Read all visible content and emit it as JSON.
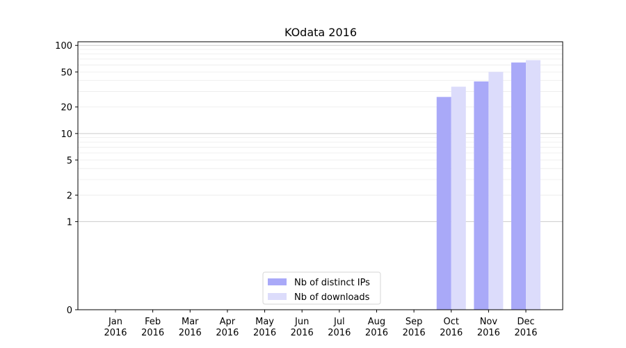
{
  "chart_data": {
    "type": "bar",
    "title": "KOdata 2016",
    "xlabel": "",
    "ylabel": "",
    "y_scale": "symlog",
    "ylim": [
      0,
      110
    ],
    "y_ticks": [
      {
        "value": 0,
        "label": "0"
      },
      {
        "value": 1,
        "label": "1"
      },
      {
        "value": 2,
        "label": "2"
      },
      {
        "value": 5,
        "label": "5"
      },
      {
        "value": 10,
        "label": "10"
      },
      {
        "value": 20,
        "label": "20"
      },
      {
        "value": 50,
        "label": "50"
      },
      {
        "value": 100,
        "label": "100"
      }
    ],
    "categories": [
      {
        "month": "Jan",
        "year": "2016"
      },
      {
        "month": "Feb",
        "year": "2016"
      },
      {
        "month": "Mar",
        "year": "2016"
      },
      {
        "month": "Apr",
        "year": "2016"
      },
      {
        "month": "May",
        "year": "2016"
      },
      {
        "month": "Jun",
        "year": "2016"
      },
      {
        "month": "Jul",
        "year": "2016"
      },
      {
        "month": "Aug",
        "year": "2016"
      },
      {
        "month": "Sep",
        "year": "2016"
      },
      {
        "month": "Oct",
        "year": "2016"
      },
      {
        "month": "Nov",
        "year": "2016"
      },
      {
        "month": "Dec",
        "year": "2016"
      }
    ],
    "series": [
      {
        "name": "Nb of distinct IPs",
        "color": "#a9a9f8",
        "values": [
          0,
          0,
          0,
          0,
          0,
          0,
          0,
          0,
          0,
          26,
          39,
          64
        ]
      },
      {
        "name": "Nb of downloads",
        "color": "#dcdcfb",
        "values": [
          0,
          0,
          0,
          0,
          0,
          0,
          0,
          0,
          0,
          34,
          50,
          68
        ]
      }
    ],
    "grid": true,
    "legend_position": "bottom-center"
  }
}
